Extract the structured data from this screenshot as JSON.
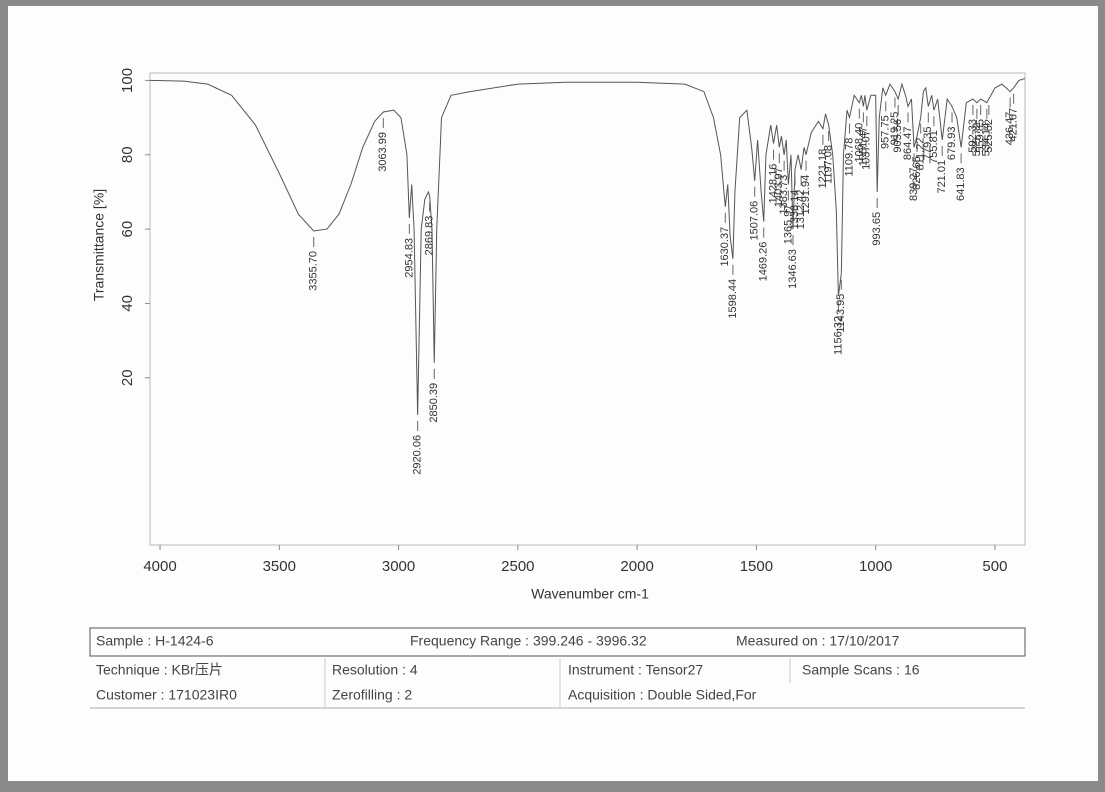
{
  "chart_data": {
    "type": "line",
    "xlabel": "Wavenumber cm-1",
    "ylabel": "Transmittance [%]",
    "xlim": [
      4042,
      374
    ],
    "ylim": [
      -25,
      102
    ],
    "xticks": [
      4000,
      3500,
      3000,
      2500,
      2000,
      1500,
      1000,
      500
    ],
    "yticks": [
      20,
      40,
      60,
      80,
      100
    ],
    "series": [
      {
        "color": "#555555",
        "x": [
          4042,
          3900,
          3800,
          3700,
          3600,
          3500,
          3420,
          3355.7,
          3300,
          3250,
          3200,
          3150,
          3100,
          3063.99,
          3020,
          2990,
          2965,
          2954.83,
          2945,
          2935,
          2920.06,
          2905,
          2890,
          2875,
          2869.83,
          2860,
          2850.39,
          2840,
          2820,
          2780,
          2700,
          2500,
          2300,
          2000,
          1800,
          1720,
          1680,
          1650,
          1630.37,
          1620,
          1610,
          1598.44,
          1590,
          1570,
          1540,
          1520,
          1507.06,
          1495,
          1480,
          1469.26,
          1460,
          1440,
          1428.16,
          1415,
          1403.97,
          1395,
          1383.73,
          1375,
          1365.97,
          1355,
          1346.63,
          1338.14,
          1325,
          1312.42,
          1300,
          1291.94,
          1270,
          1240,
          1221.18,
          1210,
          1197.08,
          1180,
          1165,
          1156.32,
          1143.95,
          1135,
          1120,
          1109.78,
          1090,
          1068.4,
          1060,
          1051.47,
          1045,
          1037.07,
          1020,
          1000,
          993.65,
          985,
          970,
          957.75,
          940,
          919.25,
          905.56,
          890,
          875,
          864.47,
          850,
          839.27,
          826.65,
          811.22,
          800,
          790,
          779.35,
          765,
          755.81,
          740,
          721.01,
          700,
          679.93,
          660,
          641.83,
          620,
          592.33,
          575.72,
          559.85,
          534.14,
          525.52,
          500,
          470,
          436.47,
          421.67,
          400,
          374
        ],
        "values": [
          100,
          99.8,
          99,
          96,
          88,
          75,
          64,
          59.5,
          60,
          64,
          72,
          82,
          89,
          91.5,
          92,
          90,
          80,
          63,
          72,
          60,
          10,
          60,
          68,
          70,
          69,
          60,
          24,
          60,
          90,
          96,
          97,
          99,
          99.5,
          99.5,
          99,
          97,
          90,
          80,
          66,
          72,
          58,
          52,
          70,
          90,
          92,
          82,
          73,
          84,
          70,
          62,
          80,
          88,
          83,
          88,
          82,
          85,
          80,
          84,
          72,
          80,
          60,
          76,
          80,
          76,
          82,
          80,
          86,
          89,
          87,
          91,
          88,
          80,
          65,
          42,
          48,
          80,
          92,
          90,
          96,
          94,
          96,
          93,
          96,
          92,
          96,
          96,
          70,
          90,
          98,
          96,
          99,
          97,
          95,
          99,
          96,
          93,
          95,
          82,
          85,
          90,
          97,
          98,
          93,
          96,
          92,
          95,
          84,
          95,
          93,
          90,
          82,
          94,
          95,
          94,
          95,
          94,
          95,
          98,
          99,
          97,
          98,
          100,
          100.5
        ]
      }
    ],
    "peaks": [
      {
        "value": 3355.7,
        "label": "3355.70"
      },
      {
        "value": 3063.99,
        "label": "3063.99"
      },
      {
        "value": 2954.83,
        "label": "2954.83"
      },
      {
        "value": 2920.06,
        "label": "2920.06"
      },
      {
        "value": 2869.83,
        "label": "2869.83"
      },
      {
        "value": 2850.39,
        "label": "2850.39"
      },
      {
        "value": 1630.37,
        "label": "1630.37"
      },
      {
        "value": 1598.44,
        "label": "1598.44"
      },
      {
        "value": 1507.06,
        "label": "1507.06"
      },
      {
        "value": 1469.26,
        "label": "1469.26"
      },
      {
        "value": 1428.16,
        "label": "1428.16"
      },
      {
        "value": 1403.97,
        "label": "1403.97"
      },
      {
        "value": 1383.73,
        "label": "1383.73"
      },
      {
        "value": 1365.97,
        "label": "1365.97"
      },
      {
        "value": 1346.63,
        "label": "1346.63"
      },
      {
        "value": 1338.14,
        "label": "1338.14"
      },
      {
        "value": 1312.42,
        "label": "1312.42"
      },
      {
        "value": 1291.94,
        "label": "1291.94"
      },
      {
        "value": 1221.18,
        "label": "1221.18"
      },
      {
        "value": 1197.08,
        "label": "1197.08"
      },
      {
        "value": 1156.32,
        "label": "1156.32"
      },
      {
        "value": 1143.95,
        "label": "1143.95"
      },
      {
        "value": 1109.78,
        "label": "1109.78"
      },
      {
        "value": 1068.4,
        "label": "1068.40"
      },
      {
        "value": 1051.47,
        "label": "1051.47"
      },
      {
        "value": 1037.07,
        "label": "1037.07"
      },
      {
        "value": 993.65,
        "label": "993.65"
      },
      {
        "value": 957.75,
        "label": "957.75"
      },
      {
        "value": 919.25,
        "label": "919.25"
      },
      {
        "value": 905.56,
        "label": "905.56"
      },
      {
        "value": 864.47,
        "label": "864.47"
      },
      {
        "value": 839.27,
        "label": "839.27"
      },
      {
        "value": 826.65,
        "label": "826.65"
      },
      {
        "value": 811.22,
        "label": "811.22"
      },
      {
        "value": 779.35,
        "label": "779.35"
      },
      {
        "value": 755.81,
        "label": "755.81"
      },
      {
        "value": 721.01,
        "label": "721.01"
      },
      {
        "value": 679.93,
        "label": "679.93"
      },
      {
        "value": 641.83,
        "label": "641.83"
      },
      {
        "value": 592.33,
        "label": "592.33"
      },
      {
        "value": 575.72,
        "label": "575.72"
      },
      {
        "value": 559.85,
        "label": "559.85"
      },
      {
        "value": 534.14,
        "label": "534.14"
      },
      {
        "value": 525.52,
        "label": "525.52"
      },
      {
        "value": 436.47,
        "label": "436.47"
      },
      {
        "value": 421.67,
        "label": "421.67"
      }
    ]
  },
  "meta": {
    "rows": [
      [
        "Sample : H-1424-6",
        "Frequency Range : 399.246 - 3996.32",
        "Measured on : 17/10/2017"
      ],
      [
        "Technique : KBr压片",
        "Resolution : 4",
        "Instrument :  Tensor27",
        "Sample Scans : 16"
      ],
      [
        "Customer : 171023IR0",
        "Zerofilling : 2",
        "Acquisition :  Double Sided,For"
      ]
    ]
  }
}
